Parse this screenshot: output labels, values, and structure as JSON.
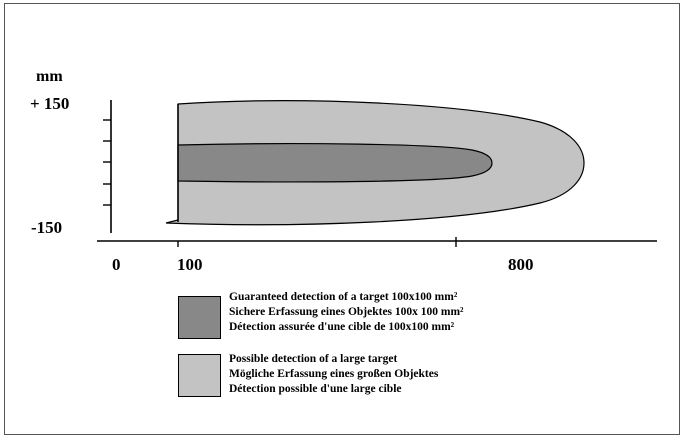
{
  "axis": {
    "unit_label": "mm",
    "y_top_label": "+ 150",
    "y_bottom_label": "-150",
    "x_labels": [
      "0",
      "100",
      "800"
    ]
  },
  "colors": {
    "guaranteed": "#888888",
    "possible": "#c3c3c3",
    "outline": "#000000"
  },
  "legend": {
    "guaranteed": {
      "lines": [
        "Guaranteed detection of a target 100x100 mm²",
        "Sichere Erfassung eines Objektes 100x 100 mm²",
        "Détection assurée d'une cible de 100x100 mm²"
      ]
    },
    "possible": {
      "lines": [
        "Possible detection of a large target",
        "Mögliche Erfassung eines  großen Objektes",
        "Détection possible d'une large cible"
      ]
    }
  }
}
